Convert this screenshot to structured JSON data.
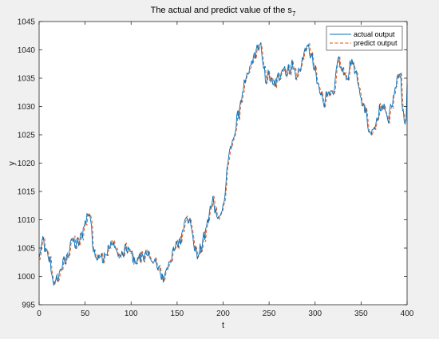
{
  "chart_data": {
    "type": "line",
    "title": "The actual and predict value of the s",
    "title_subscript": "7",
    "xlabel": "t",
    "ylabel": "y",
    "xlim": [
      0,
      400
    ],
    "ylim": [
      995,
      1045
    ],
    "xticks": [
      "0",
      "50",
      "100",
      "150",
      "200",
      "250",
      "300",
      "350",
      "400"
    ],
    "yticks": [
      "995",
      "1000",
      "1005",
      "1010",
      "1015",
      "1020",
      "1025",
      "1030",
      "1035",
      "1040",
      "1045"
    ],
    "grid": false,
    "legend_position": "top-right",
    "anchors": [
      [
        0,
        1003
      ],
      [
        4,
        1006.5
      ],
      [
        8,
        1004
      ],
      [
        12,
        1002.5
      ],
      [
        16,
        998.5
      ],
      [
        20,
        999.5
      ],
      [
        25,
        1002
      ],
      [
        30,
        1003
      ],
      [
        35,
        1006.5
      ],
      [
        40,
        1005.5
      ],
      [
        45,
        1006.5
      ],
      [
        48,
        1008.5
      ],
      [
        52,
        1010.5
      ],
      [
        55,
        1011.5
      ],
      [
        58,
        1006
      ],
      [
        62,
        1003.5
      ],
      [
        66,
        1004
      ],
      [
        70,
        1002.5
      ],
      [
        75,
        1005
      ],
      [
        80,
        1006
      ],
      [
        85,
        1004
      ],
      [
        90,
        1003.5
      ],
      [
        95,
        1005
      ],
      [
        100,
        1004
      ],
      [
        105,
        1002.5
      ],
      [
        110,
        1003.5
      ],
      [
        115,
        1004
      ],
      [
        120,
        1003
      ],
      [
        125,
        1003
      ],
      [
        130,
        1001
      ],
      [
        135,
        999.5
      ],
      [
        140,
        1002
      ],
      [
        145,
        1004
      ],
      [
        150,
        1005.5
      ],
      [
        155,
        1007
      ],
      [
        158,
        1010
      ],
      [
        161,
        1011
      ],
      [
        165,
        1009
      ],
      [
        169,
        1005
      ],
      [
        173,
        1003.5
      ],
      [
        177,
        1005.5
      ],
      [
        181,
        1008
      ],
      [
        185,
        1011
      ],
      [
        189,
        1013.5
      ],
      [
        193,
        1011
      ],
      [
        197,
        1010.5
      ],
      [
        201,
        1013
      ],
      [
        205,
        1020
      ],
      [
        209,
        1023
      ],
      [
        214,
        1026.5
      ],
      [
        218,
        1030
      ],
      [
        222,
        1033
      ],
      [
        226,
        1035
      ],
      [
        230,
        1037
      ],
      [
        234,
        1039
      ],
      [
        238,
        1040.5
      ],
      [
        240,
        1041.5
      ],
      [
        243,
        1037.5
      ],
      [
        246,
        1035
      ],
      [
        250,
        1035.5
      ],
      [
        255,
        1033.5
      ],
      [
        260,
        1035
      ],
      [
        265,
        1037
      ],
      [
        270,
        1036
      ],
      [
        275,
        1037.5
      ],
      [
        280,
        1035
      ],
      [
        285,
        1037.5
      ],
      [
        290,
        1040.5
      ],
      [
        295,
        1039.5
      ],
      [
        300,
        1036
      ],
      [
        305,
        1032.5
      ],
      [
        310,
        1031
      ],
      [
        315,
        1033
      ],
      [
        320,
        1031.5
      ],
      [
        325,
        1038.5
      ],
      [
        330,
        1036
      ],
      [
        335,
        1035
      ],
      [
        340,
        1038.5
      ],
      [
        345,
        1035
      ],
      [
        350,
        1031.5
      ],
      [
        355,
        1029
      ],
      [
        360,
        1025
      ],
      [
        365,
        1027
      ],
      [
        370,
        1029.5
      ],
      [
        375,
        1030
      ],
      [
        380,
        1028
      ],
      [
        385,
        1031.5
      ],
      [
        390,
        1036
      ],
      [
        393,
        1035.5
      ],
      [
        396,
        1028
      ],
      [
        399,
        1027
      ],
      [
        400,
        1033
      ]
    ],
    "series": [
      {
        "name": "actual output",
        "color": "#0072BD",
        "style": "solid"
      },
      {
        "name": "predict output",
        "color": "#D95319",
        "style": "dashed"
      }
    ]
  }
}
